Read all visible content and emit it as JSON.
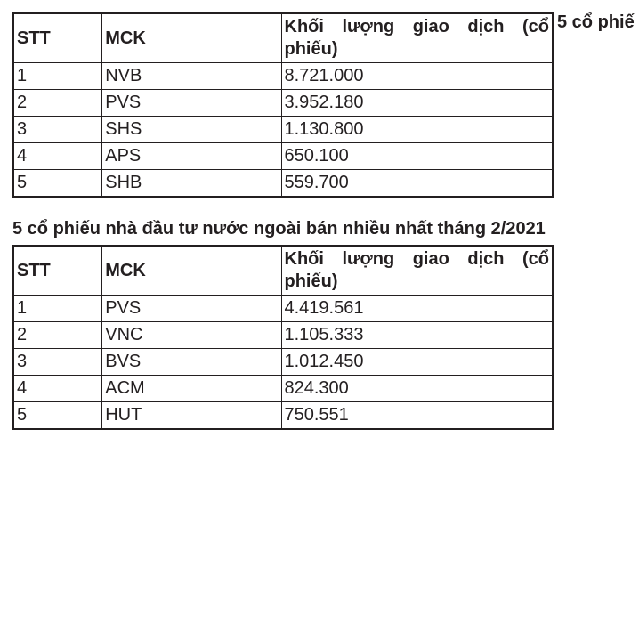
{
  "floating_label": "5 cổ phiế",
  "table1": {
    "headers": {
      "stt": "STT",
      "mck": "MCK",
      "vol": "Khối lượng giao dịch (cổ phiếu)"
    },
    "rows": [
      {
        "stt": "1",
        "mck": "NVB",
        "vol": "8.721.000"
      },
      {
        "stt": "2",
        "mck": "PVS",
        "vol": "3.952.180"
      },
      {
        "stt": "3",
        "mck": "SHS",
        "vol": "1.130.800"
      },
      {
        "stt": "4",
        "mck": "APS",
        "vol": "650.100"
      },
      {
        "stt": "5",
        "mck": "SHB",
        "vol": "559.700"
      }
    ]
  },
  "table2_title": "5 cổ phiếu nhà đầu tư nước ngoài bán nhiều nhất tháng 2/2021",
  "table2": {
    "headers": {
      "stt": "STT",
      "mck": "MCK",
      "vol": "Khối lượng giao dịch (cổ phiếu)"
    },
    "rows": [
      {
        "stt": "1",
        "mck": "PVS",
        "vol": "4.419.561"
      },
      {
        "stt": "2",
        "mck": "VNC",
        "vol": "1.105.333"
      },
      {
        "stt": "3",
        "mck": "BVS",
        "vol": "1.012.450"
      },
      {
        "stt": "4",
        "mck": "ACM",
        "vol": "824.300"
      },
      {
        "stt": "5",
        "mck": "HUT",
        "vol": "750.551"
      }
    ]
  }
}
